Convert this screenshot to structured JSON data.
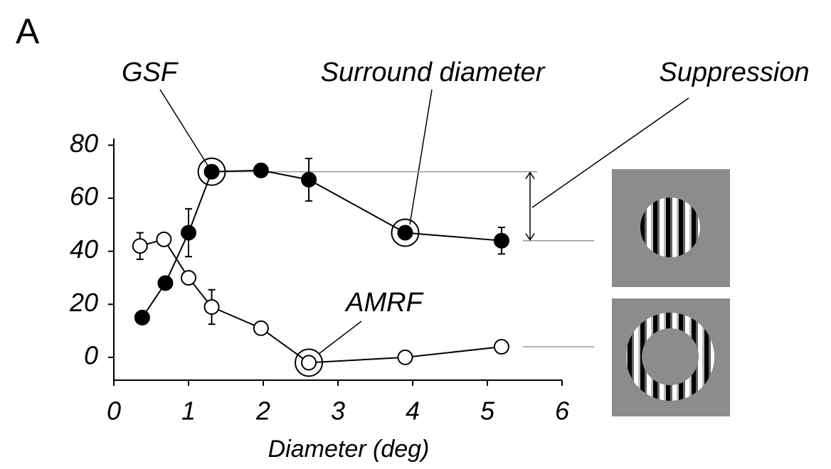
{
  "chart_data": {
    "type": "line",
    "panel_label": "A",
    "xlabel": "Diameter (deg)",
    "annotations": [
      "GSF",
      "Surround diameter",
      "Suppression",
      "AMRF"
    ],
    "xlim": [
      0,
      6
    ],
    "xticks": [
      0,
      1,
      2,
      3,
      4,
      5,
      6
    ],
    "ylim": [
      -8.6,
      82.5
    ],
    "yticks": [
      0,
      20,
      40,
      60,
      80
    ],
    "series": [
      {
        "color": "#000000",
        "fill": "#000000",
        "x": [
          0.38,
          0.69,
          1.0,
          1.31,
          1.97,
          2.61,
          3.9,
          5.19
        ],
        "values": [
          15,
          28,
          47,
          70,
          70.5,
          67,
          47,
          44
        ],
        "errors": [
          null,
          null,
          9,
          null,
          null,
          8,
          null,
          5
        ]
      },
      {
        "color": "#000000",
        "fill": "#ffffff",
        "x": [
          0.35,
          0.67,
          1.0,
          1.31,
          1.97,
          2.61,
          3.9,
          5.19
        ],
        "values": [
          42,
          44.5,
          30,
          19,
          11,
          -2,
          0,
          4
        ],
        "errors": [
          5,
          null,
          null,
          6.5,
          null,
          null,
          null,
          null
        ]
      }
    ]
  }
}
